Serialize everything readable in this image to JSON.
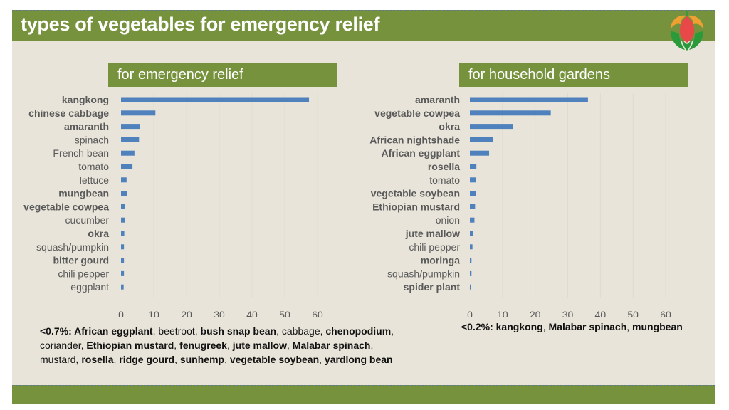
{
  "header": {
    "title": "types of vegetables for emergency relief",
    "logo_icon": "flower-logo-icon"
  },
  "colors": {
    "brand_green": "#76923c",
    "background": "#e8e4d9",
    "bar_blue": "#4f81bd",
    "label_gray": "#595959"
  },
  "chart_data": [
    {
      "type": "bar",
      "orientation": "horizontal",
      "title": "for emergency relief",
      "categories": [
        "kangkong",
        "chinese cabbage",
        "amaranth",
        "spinach",
        "French bean",
        "tomato",
        "lettuce",
        "mungbean",
        "vegetable cowpea",
        "cucumber",
        "okra",
        "squash/pumpkin",
        "bitter gourd",
        "chili pepper",
        "eggplant"
      ],
      "bold_categories": [
        "kangkong",
        "chinese cabbage",
        "amaranth",
        "mungbean",
        "vegetable cowpea",
        "okra",
        "bitter gourd"
      ],
      "values": [
        57.4,
        10.5,
        5.7,
        5.5,
        4.1,
        3.5,
        1.7,
        1.8,
        1.3,
        1.2,
        1.0,
        0.9,
        0.9,
        0.9,
        0.8
      ],
      "xlabel": "",
      "ylabel": "",
      "xlim": [
        0,
        60
      ],
      "xticks": [
        "0",
        "10",
        "20",
        "30",
        "40",
        "50",
        "60"
      ],
      "grid": true,
      "legend": "none"
    },
    {
      "type": "bar",
      "orientation": "horizontal",
      "title": "for household gardens",
      "categories": [
        "amaranth",
        "vegetable cowpea",
        "okra",
        "African nightshade",
        "African eggplant",
        "rosella",
        "tomato",
        "vegetable soybean",
        "Ethiopian mustard",
        "onion",
        "jute mallow",
        "chili pepper",
        "moringa",
        "squash/pumpkin",
        "spider plant"
      ],
      "bold_categories": [
        "amaranth",
        "vegetable cowpea",
        "okra",
        "African nightshade",
        "African eggplant",
        "rosella",
        "vegetable soybean",
        "Ethiopian mustard",
        "jute mallow",
        "moringa",
        "spider plant"
      ],
      "values": [
        36.2,
        24.8,
        13.3,
        7.2,
        5.9,
        2.0,
        1.9,
        1.8,
        1.6,
        1.4,
        0.9,
        0.8,
        0.5,
        0.5,
        0.3
      ],
      "xlabel": "",
      "ylabel": "",
      "xlim": [
        0,
        60
      ],
      "xticks": [
        "0",
        "10",
        "20",
        "30",
        "40",
        "50",
        "60"
      ],
      "grid": true,
      "legend": "none"
    }
  ],
  "notes": {
    "left": [
      {
        "text": "<0.7%: ",
        "bold": true
      },
      {
        "text": "African eggplant",
        "bold": true
      },
      {
        "text": ", beetroot, ",
        "bold": false
      },
      {
        "text": "bush snap bean",
        "bold": true
      },
      {
        "text": ", cabbage, ",
        "bold": false
      },
      {
        "text": "chenopodium",
        "bold": true
      },
      {
        "text": ", coriander, ",
        "bold": false
      },
      {
        "text": "Ethiopian mustard",
        "bold": true
      },
      {
        "text": ", ",
        "bold": false
      },
      {
        "text": "fenugreek",
        "bold": true
      },
      {
        "text": ", ",
        "bold": false
      },
      {
        "text": "jute mallow",
        "bold": true
      },
      {
        "text": ", ",
        "bold": false
      },
      {
        "text": "Malabar spinach",
        "bold": true
      },
      {
        "text": ", mustard",
        "bold": false
      },
      {
        "text": ", rosella",
        "bold": true
      },
      {
        "text": ", ",
        "bold": false
      },
      {
        "text": "ridge gourd",
        "bold": true
      },
      {
        "text": ", ",
        "bold": false
      },
      {
        "text": "sunhemp",
        "bold": true
      },
      {
        "text": ", ",
        "bold": false
      },
      {
        "text": "vegetable soybean",
        "bold": true
      },
      {
        "text": ", ",
        "bold": false
      },
      {
        "text": "yardlong bean",
        "bold": true
      }
    ],
    "right": [
      {
        "text": "<0.2%: kangkong",
        "bold": true
      },
      {
        "text": ", ",
        "bold": false
      },
      {
        "text": "Malabar spinach",
        "bold": true
      },
      {
        "text": ", ",
        "bold": false
      },
      {
        "text": "mungbean",
        "bold": true
      }
    ]
  }
}
